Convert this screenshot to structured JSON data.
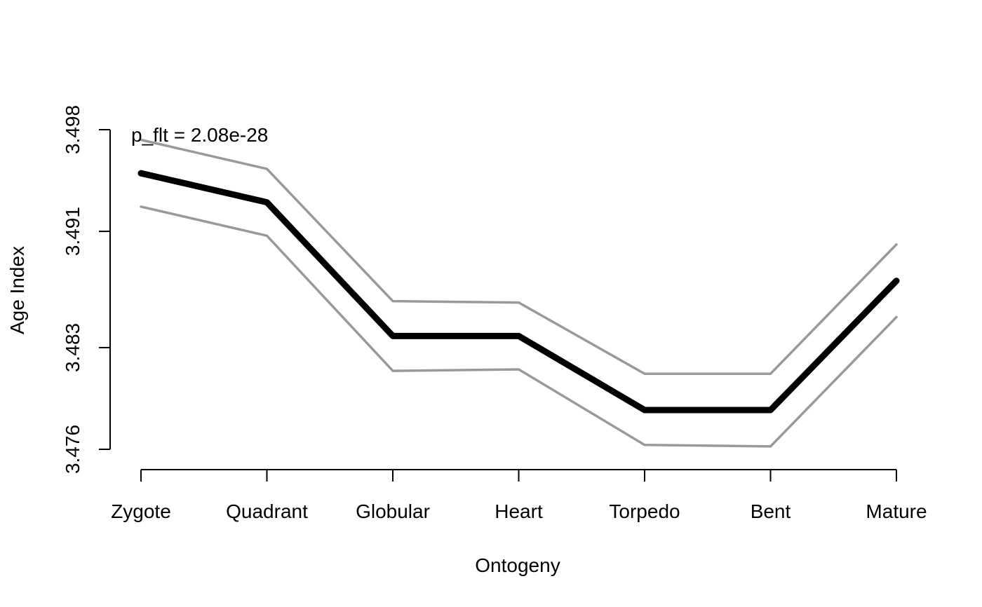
{
  "chart_data": {
    "type": "line",
    "xlabel": "Ontogeny",
    "ylabel": "Age Index",
    "categories": [
      "Zygote",
      "Quadrant",
      "Globular",
      "Heart",
      "Torpedo",
      "Bent",
      "Mature"
    ],
    "series": [
      {
        "role": "upper",
        "color": "#999999",
        "values": [
          3.4973,
          3.4953,
          3.4862,
          3.4861,
          3.4812,
          3.4812,
          3.4901
        ]
      },
      {
        "role": "mean",
        "color": "#000000",
        "values": [
          3.495,
          3.493,
          3.4838,
          3.4838,
          3.4787,
          3.4787,
          3.4876
        ]
      },
      {
        "role": "lower",
        "color": "#999999",
        "values": [
          3.4927,
          3.4907,
          3.4814,
          3.4815,
          3.4763,
          3.4762,
          3.4851
        ]
      }
    ],
    "yticks": [
      "3.476",
      "3.483",
      "3.491",
      "3.498"
    ],
    "ylim": [
      3.476,
      3.498
    ],
    "annotation": "p_flt = 2.08e-28",
    "grid": false,
    "legend": "none"
  }
}
